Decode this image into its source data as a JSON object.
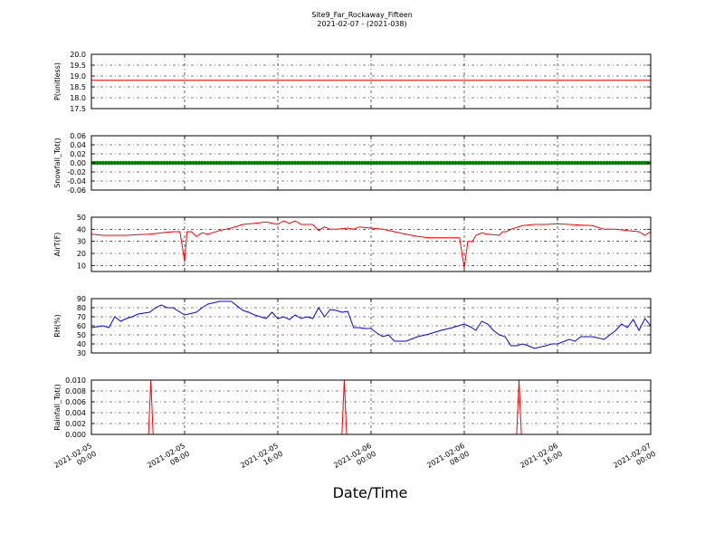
{
  "figure": {
    "title_line1": "Site9_Far_Rockaway_Fifteen",
    "title_line2": "2021-02-07 - (2021-038)",
    "xlabel": "Date/Time"
  },
  "x_ticks": [
    {
      "t": 0,
      "line1": "2021-02-05",
      "line2": "00:00"
    },
    {
      "t": 8,
      "line1": "2021-02-05",
      "line2": "08:00"
    },
    {
      "t": 16,
      "line1": "2021-02-05",
      "line2": "16:00"
    },
    {
      "t": 24,
      "line1": "2021-02-06",
      "line2": "00:00"
    },
    {
      "t": 32,
      "line1": "2021-02-06",
      "line2": "08:00"
    },
    {
      "t": 40,
      "line1": "2021-02-06",
      "line2": "16:00"
    },
    {
      "t": 48,
      "line1": "2021-02-07",
      "line2": "00:00"
    }
  ],
  "chart_data": [
    {
      "type": "line",
      "ylabel": "P(unitless)",
      "ylim": [
        17.5,
        20.0
      ],
      "yticks": [
        17.5,
        18.0,
        18.5,
        19.0,
        19.5,
        20.0
      ],
      "tick_decimals": 1,
      "grid": true,
      "color": "#ff0000",
      "x": [
        0,
        48
      ],
      "y": [
        18.8,
        18.8
      ]
    },
    {
      "type": "scatter",
      "ylabel": "Snowfall_Tot()",
      "ylim": [
        -0.06,
        0.06
      ],
      "yticks": [
        -0.06,
        -0.04,
        -0.02,
        0.0,
        0.02,
        0.04,
        0.06
      ],
      "tick_decimals": 2,
      "grid": true,
      "color": "#007f00",
      "x_start": 0,
      "x_end": 48,
      "x_step": 0.25,
      "y_const": 0.0
    },
    {
      "type": "line",
      "ylabel": "AirT(F)",
      "ylim": [
        5,
        50
      ],
      "yticks": [
        10,
        20,
        30,
        40,
        50
      ],
      "tick_decimals": 0,
      "grid": true,
      "color": "#ff0000",
      "x": [
        0,
        1,
        2,
        3,
        4,
        5,
        6,
        7,
        7.6,
        7.8,
        8.0,
        8.2,
        8.6,
        9,
        9.5,
        10,
        11,
        12,
        13,
        14,
        15,
        16,
        16.5,
        17,
        17.5,
        18,
        19,
        19.5,
        20,
        20.5,
        21,
        22,
        22.5,
        23,
        24,
        25,
        26,
        27,
        28,
        29,
        30,
        31,
        31.6,
        31.8,
        32.0,
        32.3,
        32.7,
        33,
        33.5,
        34,
        35,
        35.3,
        35.6,
        36,
        37,
        38,
        39,
        40,
        41,
        42,
        43,
        44,
        45,
        46,
        47,
        47.5,
        48
      ],
      "y": [
        36,
        35,
        35,
        35,
        35.5,
        36,
        37,
        38,
        38,
        26,
        13,
        38,
        38,
        34,
        37,
        36,
        39,
        41,
        44,
        45,
        46,
        44,
        47,
        45,
        47,
        44,
        44,
        39,
        42,
        40,
        40,
        41,
        40,
        42,
        41,
        40,
        38,
        36,
        34,
        33,
        33,
        33,
        33,
        20,
        8,
        30,
        30,
        35,
        37,
        36,
        35,
        38,
        38,
        40,
        43,
        44,
        44,
        44.5,
        44,
        43.5,
        43,
        40,
        40,
        39,
        38,
        35,
        38
      ]
    },
    {
      "type": "line",
      "ylabel": "RH(%)",
      "ylim": [
        30,
        90
      ],
      "yticks": [
        30,
        40,
        50,
        60,
        70,
        80,
        90
      ],
      "tick_decimals": 0,
      "grid": true,
      "color": "#0000ff",
      "x": [
        0,
        1,
        1.5,
        2,
        2.5,
        3,
        3.5,
        4,
        5,
        5.5,
        6,
        6.5,
        7,
        8,
        9,
        9.5,
        10,
        11,
        12,
        13,
        13.5,
        14,
        15,
        15.5,
        16,
        16.5,
        17,
        17.5,
        18,
        18.5,
        19,
        19.5,
        20,
        20.5,
        21,
        21.5,
        22,
        22.5,
        23,
        23.5,
        24,
        24.5,
        25,
        25.5,
        26,
        27,
        28,
        29,
        30,
        31,
        32,
        32.5,
        33,
        33.5,
        34,
        34.5,
        35,
        35.5,
        36,
        36.5,
        37,
        37.5,
        38,
        39,
        39.5,
        40,
        41,
        41.5,
        42,
        43,
        44,
        45,
        45.5,
        46,
        46.5,
        47,
        47.5,
        48
      ],
      "y": [
        58,
        60,
        58,
        70,
        65,
        68,
        70,
        73,
        75,
        80,
        83,
        80,
        80,
        72,
        75,
        80,
        84,
        87,
        87,
        77,
        75,
        72,
        68,
        75,
        68,
        70,
        67,
        72,
        68,
        70,
        68,
        80,
        70,
        78,
        77,
        75,
        76,
        58,
        58,
        57,
        57,
        52,
        48,
        50,
        43,
        43,
        48,
        51,
        55,
        58,
        62,
        59,
        55,
        65,
        62,
        55,
        50,
        48,
        38,
        38,
        40,
        38,
        35,
        38,
        40,
        40,
        45,
        43,
        48,
        48,
        45,
        55,
        62,
        58,
        67,
        55,
        68,
        60
      ]
    },
    {
      "type": "line",
      "ylabel": "Rainfall_Tot()",
      "ylim": [
        0,
        0.01
      ],
      "yticks": [
        0.0,
        0.002,
        0.004,
        0.006,
        0.008,
        0.01
      ],
      "tick_decimals": 3,
      "grid": true,
      "color": "#ff0000",
      "x": [
        0,
        4.9,
        5.1,
        5.3,
        21.5,
        21.7,
        21.9,
        36.5,
        36.7,
        36.9,
        48
      ],
      "y": [
        0,
        0,
        0.01,
        0,
        0,
        0.01,
        0,
        0,
        0.01,
        0,
        0
      ]
    }
  ]
}
